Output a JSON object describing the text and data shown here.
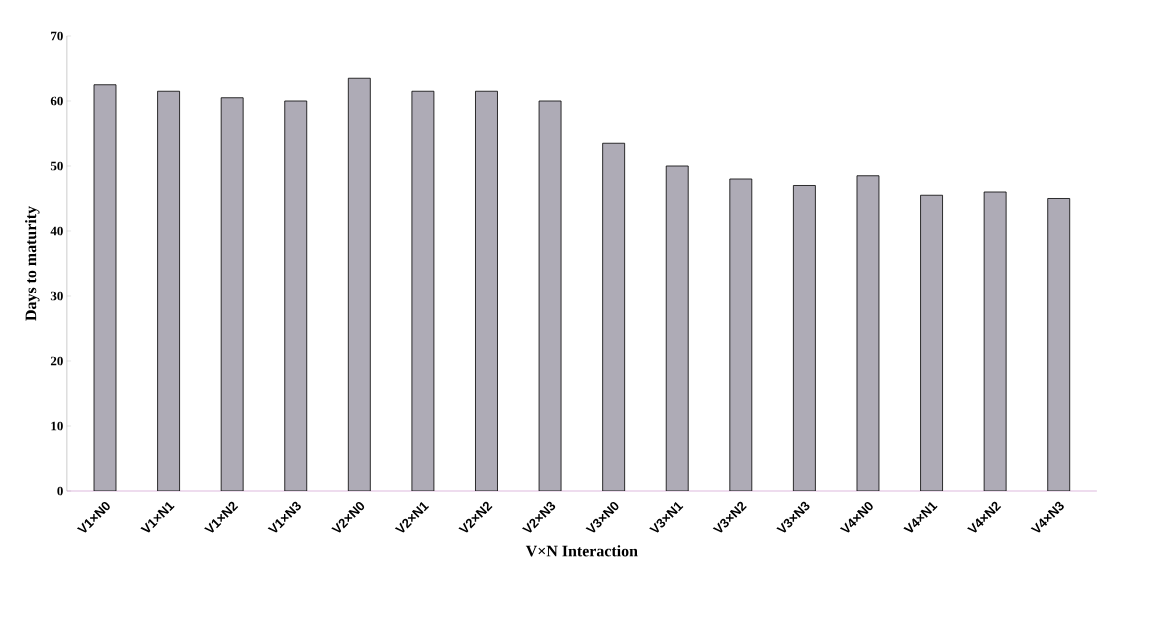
{
  "chart_data": {
    "type": "bar",
    "xlabel": "V×N Interaction",
    "ylabel": "Days to maturity",
    "categories": [
      "V1×N0",
      "V1×N1",
      "V1×N2",
      "V1×N3",
      "V2×N0",
      "V2×N1",
      "V2×N2",
      "V2×N3",
      "V3×N0",
      "V3×N1",
      "V3×N2",
      "V3×N3",
      "V4×N0",
      "V4×N1",
      "V4×N2",
      "V4×N3"
    ],
    "values": [
      62.5,
      61.5,
      60.5,
      60,
      63.5,
      61.5,
      61.5,
      60,
      53.5,
      50,
      48,
      47,
      48.5,
      45.5,
      46,
      45
    ],
    "color": "#aeabb6",
    "ylim": [
      0,
      70
    ],
    "yticks": [
      0,
      10,
      20,
      30,
      40,
      50,
      60,
      70
    ],
    "grid": false
  }
}
